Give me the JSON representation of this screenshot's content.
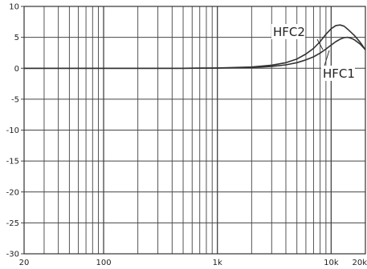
{
  "chart_data": {
    "type": "line",
    "title": "",
    "xlabel": "",
    "ylabel": "",
    "x_scale": "log",
    "xlim": [
      20,
      20000
    ],
    "ylim": [
      -30,
      10
    ],
    "grid": true,
    "y_ticks": [
      10,
      5,
      0,
      -5,
      -10,
      -15,
      -20,
      -25,
      -30
    ],
    "y_tick_labels": [
      "10",
      "5",
      "0",
      "-5",
      "-10",
      "-15",
      "-20",
      "-25",
      "-30"
    ],
    "x_ticks": [
      20,
      100,
      1000,
      10000,
      20000
    ],
    "x_tick_labels": [
      "20",
      "100",
      "1k",
      "10k",
      "20k"
    ],
    "series": [
      {
        "name": "HFC2",
        "color": "#333333",
        "x": [
          20,
          100,
          500,
          1000,
          2000,
          3000,
          4000,
          5000,
          6000,
          7000,
          8000,
          9000,
          10000,
          11000,
          12000,
          13000,
          14000,
          16000,
          18000,
          20000
        ],
        "y": [
          0,
          0,
          0,
          0.05,
          0.2,
          0.5,
          0.9,
          1.5,
          2.3,
          3.2,
          4.3,
          5.5,
          6.4,
          6.9,
          7.0,
          6.8,
          6.3,
          5.3,
          4.2,
          3.0
        ]
      },
      {
        "name": "HFC1",
        "color": "#333333",
        "x": [
          20,
          100,
          500,
          1000,
          2000,
          3000,
          4000,
          5000,
          6000,
          7000,
          8000,
          9000,
          10000,
          11000,
          12000,
          13000,
          14000,
          15000,
          16000,
          18000,
          20000
        ],
        "y": [
          0,
          0,
          0,
          0.03,
          0.1,
          0.3,
          0.55,
          0.9,
          1.35,
          1.85,
          2.45,
          3.1,
          3.75,
          4.3,
          4.7,
          4.95,
          5.0,
          4.85,
          4.6,
          3.9,
          3.0
        ]
      }
    ]
  }
}
